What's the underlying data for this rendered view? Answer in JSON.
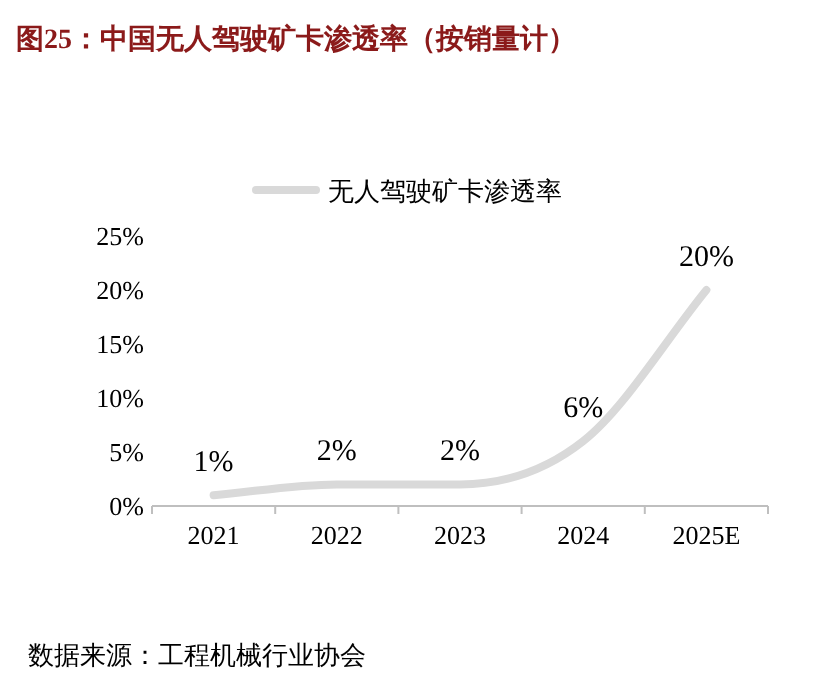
{
  "chart_data": {
    "type": "line",
    "title": "图25：中国无人驾驶矿卡渗透率（按销量计）",
    "categories": [
      "2021",
      "2022",
      "2023",
      "2024",
      "2025E"
    ],
    "series": [
      {
        "name": "无人驾驶矿卡渗透率",
        "color": "#d9d9d9",
        "values": [
          1,
          2,
          2,
          6,
          20
        ]
      }
    ],
    "ylim": [
      0,
      25
    ],
    "yticks": [
      {
        "value": 0,
        "label": "0%"
      },
      {
        "value": 5,
        "label": "5%"
      },
      {
        "value": 10,
        "label": "10%"
      },
      {
        "value": 15,
        "label": "15%"
      },
      {
        "value": 20,
        "label": "20%"
      },
      {
        "value": 25,
        "label": "25%"
      }
    ],
    "value_labels": [
      "1%",
      "2%",
      "2%",
      "6%",
      "20%"
    ],
    "legend": "top",
    "grid": false,
    "marker": "none",
    "line_style": "solid",
    "annotations": [
      "数据来源：工程机械行业协会"
    ]
  }
}
